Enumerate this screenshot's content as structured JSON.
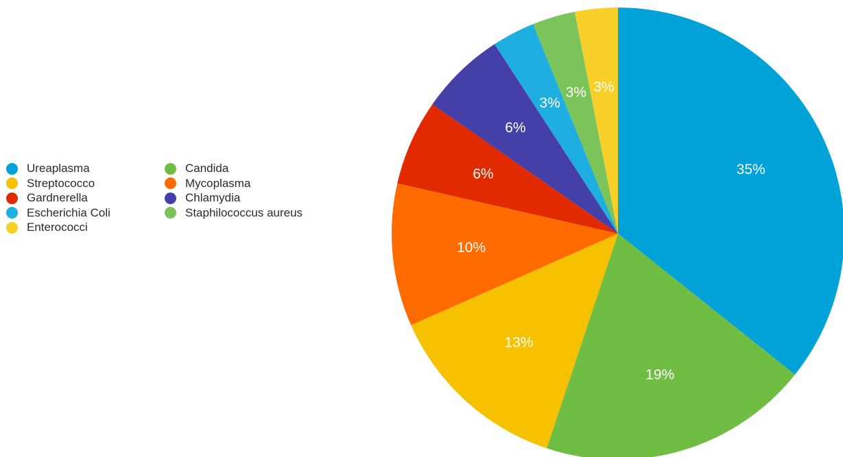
{
  "chart_data": {
    "type": "pie",
    "start_angle_deg": 0,
    "direction": "clockwise",
    "legend_position": "left",
    "legend_columns": 2,
    "slices": [
      {
        "name": "Ureaplasma",
        "value": 35,
        "label": "35%",
        "color": "#00a2d8"
      },
      {
        "name": "Candida",
        "value": 19,
        "label": "19%",
        "color": "#70bd44"
      },
      {
        "name": "Streptococco",
        "value": 13,
        "label": "13%",
        "color": "#f5c100"
      },
      {
        "name": "Mycoplasma",
        "value": 10,
        "label": "10%",
        "color": "#fe6b00"
      },
      {
        "name": "Gardnerella",
        "value": 6,
        "label": "6%",
        "color": "#e12a00"
      },
      {
        "name": "Chlamydia",
        "value": 6,
        "label": "6%",
        "color": "#4440a8"
      },
      {
        "name": "Escherichia Coli",
        "value": 3,
        "label": "3%",
        "color": "#1eaee0"
      },
      {
        "name": "Staphilococcus aureus",
        "value": 3,
        "label": "3%",
        "color": "#7cc45a"
      },
      {
        "name": "Enterococci",
        "value": 3,
        "label": "3%",
        "color": "#f9cf2a"
      }
    ],
    "legend_order": [
      "Ureaplasma",
      "Streptococco",
      "Gardnerella",
      "Escherichia Coli",
      "Enterococci",
      "Candida",
      "Mycoplasma",
      "Chlamydia",
      "Staphilococcus aureus"
    ]
  }
}
